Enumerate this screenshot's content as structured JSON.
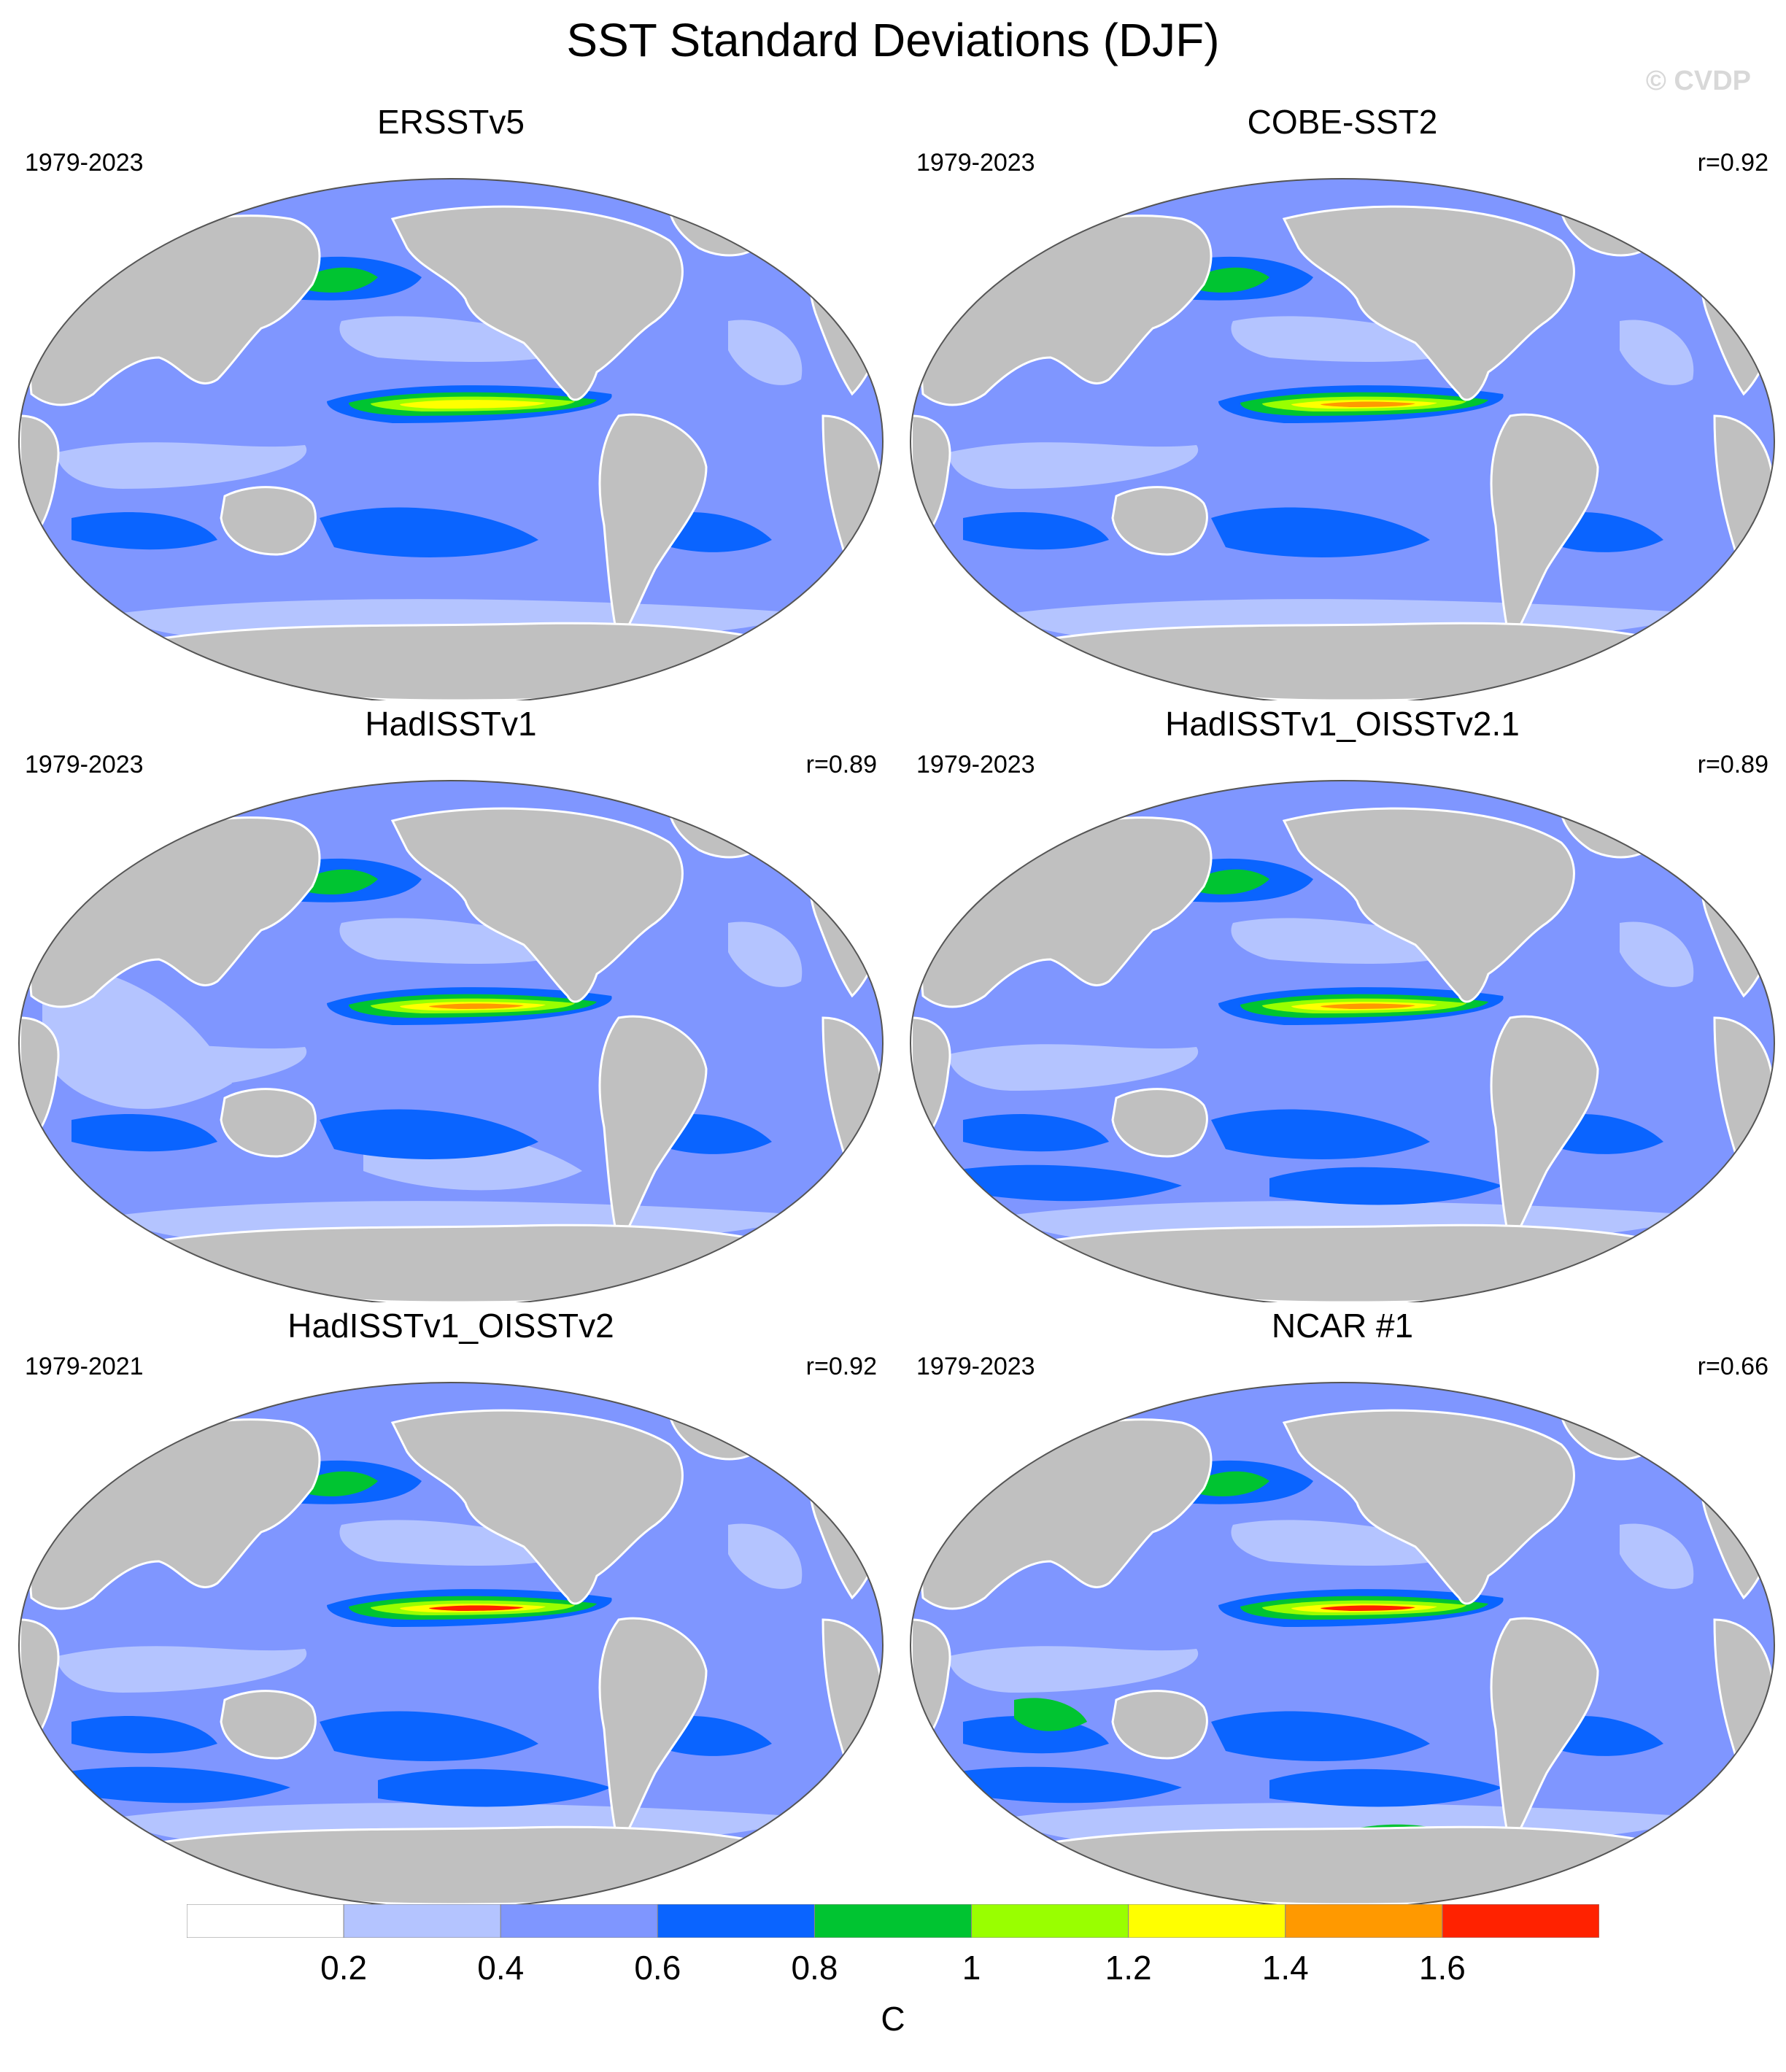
{
  "figure": {
    "title": "SST Standard Deviations (DJF)",
    "watermark": "© CVDP"
  },
  "panels": [
    {
      "title": "ERSSTv5",
      "years": "1979-2023",
      "corr": "",
      "enso_peak": "#ffff00",
      "pattern": "smooth"
    },
    {
      "title": "COBE-SST2",
      "years": "1979-2023",
      "corr": "r=0.92",
      "enso_peak": "#ff9900",
      "pattern": "smooth"
    },
    {
      "title": "HadISSTv1",
      "years": "1979-2023",
      "corr": "r=0.89",
      "enso_peak": "#ff9900",
      "pattern": "light"
    },
    {
      "title": "HadISSTv1_OISSTv2.1",
      "years": "1979-2023",
      "corr": "r=0.89",
      "enso_peak": "#ff9900",
      "pattern": "noisy"
    },
    {
      "title": "HadISSTv1_OISSTv2",
      "years": "1979-2021",
      "corr": "r=0.92",
      "enso_peak": "#ff2200",
      "pattern": "noisy"
    },
    {
      "title": "NCAR #1",
      "years": "1979-2023",
      "corr": "r=0.66",
      "enso_peak": "#ff2200",
      "pattern": "model"
    }
  ],
  "colorbar": {
    "colors": [
      "#ffffff",
      "#b4c4ff",
      "#7f96ff",
      "#0a64ff",
      "#00c431",
      "#99ff00",
      "#ffff00",
      "#ff9900",
      "#ff2200"
    ],
    "labels": [
      "0.2",
      "0.4",
      "0.6",
      "0.8",
      "1",
      "1.2",
      "1.4",
      "1.6"
    ],
    "units": "C"
  },
  "map_colors": {
    "land": "#c0c0c0",
    "ocean_base": "#7f96ff",
    "outline": "#555555"
  }
}
